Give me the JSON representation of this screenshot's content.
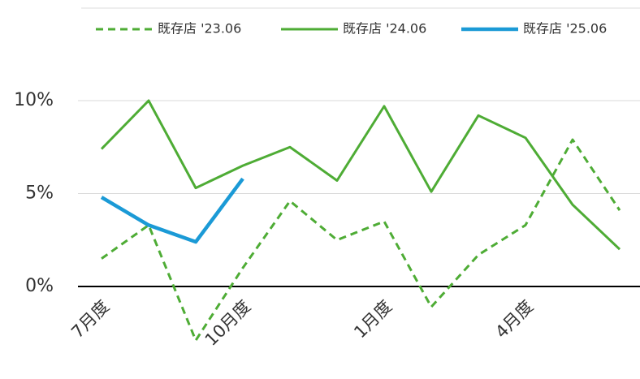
{
  "chart_data": {
    "type": "line",
    "categories": [
      "7月度",
      null,
      null,
      "10月度",
      null,
      null,
      "1月度",
      null,
      null,
      "4月度",
      null,
      null
    ],
    "series": [
      {
        "name": "既存店 '23.06",
        "color": "#4eac35",
        "dash": true,
        "values": [
          1.5,
          3.3,
          -2.9,
          1.0,
          4.6,
          2.5,
          3.5,
          -1.1,
          1.7,
          3.3,
          7.9,
          4.1
        ]
      },
      {
        "name": "既存店 '24.06",
        "color": "#4eac35",
        "dash": false,
        "values": [
          7.4,
          10.0,
          5.3,
          6.5,
          7.5,
          5.7,
          9.7,
          5.1,
          9.2,
          8.0,
          4.4,
          2.0
        ]
      },
      {
        "name": "既存店 '25.06",
        "color": "#1b9ad6",
        "dash": false,
        "values": [
          4.8,
          3.3,
          2.4,
          5.8,
          null,
          null,
          null,
          null,
          null,
          null,
          null,
          null
        ]
      }
    ],
    "ylim": [
      -3,
      10
    ],
    "yticks": [
      {
        "value": 0,
        "label": "0%"
      },
      {
        "value": 5,
        "label": "5%"
      },
      {
        "value": 10,
        "label": "10%"
      }
    ],
    "grid": true,
    "legend": "top"
  }
}
